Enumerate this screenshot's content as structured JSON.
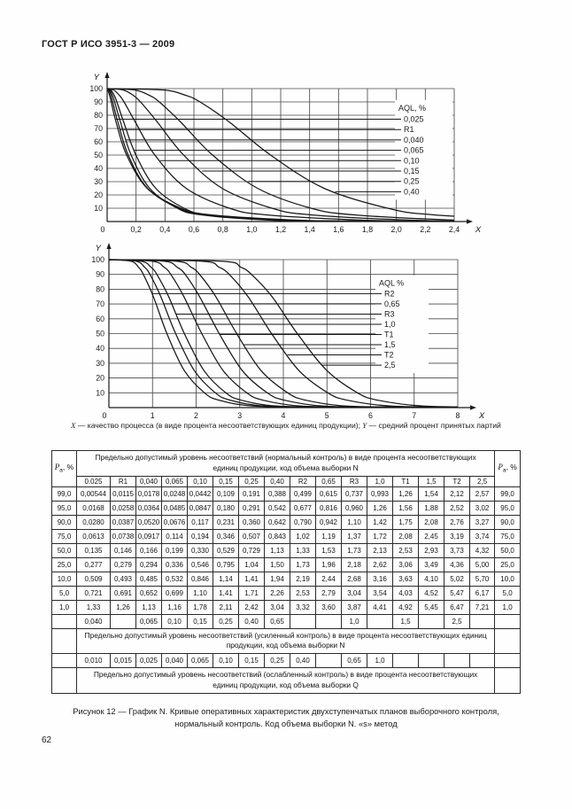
{
  "document": {
    "header": "ГОСТ Р ИСО 3951-3 — 2009",
    "page_number": "62",
    "axis_note": {
      "x_symbol": "X",
      "x_text": " — качество процесса (в виде процента несоответствующих единиц продукции); ",
      "y_symbol": "Y",
      "y_text": " — средний процент принятых партий"
    },
    "figure_caption": {
      "line1": "Рисунок 12 — График N. Кривые оперативных характеристик двухступенчатых планов выборочного контроля,",
      "line2": "нормальный контроль. Код объема выборки N. «s» метод"
    }
  },
  "chart_data": [
    {
      "type": "line",
      "title": "",
      "xlabel": "X",
      "ylabel": "Y",
      "xlim": [
        0,
        2.4
      ],
      "ylim": [
        0,
        100
      ],
      "grid": true,
      "origin_label": "0",
      "x_tick_values": [
        0.2,
        0.4,
        0.6,
        0.8,
        1.0,
        1.2,
        1.4,
        1.6,
        1.8,
        2.0,
        2.2,
        2.4
      ],
      "x_tick_labels": [
        "0,2",
        "0,4",
        "0,6",
        "0,8",
        "1,0",
        "1,2",
        "1,4",
        "1,6",
        "1,8",
        "2,0",
        "2,2",
        "2,4"
      ],
      "y_tick_values": [
        10,
        20,
        30,
        40,
        50,
        60,
        70,
        80,
        90,
        100
      ],
      "legend_title": "AQL, %",
      "legend_position": "inside-right",
      "pa_percent_levels": [
        99,
        95,
        90,
        75,
        50,
        25,
        10,
        5,
        1
      ],
      "series": [
        {
          "name": "0,025",
          "x": [
            0.00544,
            0.0168,
            0.028,
            0.0613,
            0.135,
            0.277,
            0.509,
            0.721,
            1.33
          ]
        },
        {
          "name": "R1",
          "x": [
            0.0115,
            0.0258,
            0.0387,
            0.0738,
            0.146,
            0.279,
            0.493,
            0.691,
            1.26
          ]
        },
        {
          "name": "0,040",
          "x": [
            0.0178,
            0.0364,
            0.052,
            0.0917,
            0.166,
            0.294,
            0.485,
            0.652,
            1.13
          ]
        },
        {
          "name": "0,065",
          "x": [
            0.0248,
            0.0485,
            0.0676,
            0.114,
            0.199,
            0.336,
            0.532,
            0.699,
            1.16
          ]
        },
        {
          "name": "0,10",
          "x": [
            0.0442,
            0.0847,
            0.117,
            0.194,
            0.33,
            0.546,
            0.846,
            1.1,
            1.78
          ]
        },
        {
          "name": "0,15",
          "x": [
            0.109,
            0.18,
            0.231,
            0.346,
            0.529,
            0.795,
            1.14,
            1.41,
            2.11
          ]
        },
        {
          "name": "0,25",
          "x": [
            0.191,
            0.291,
            0.36,
            0.507,
            0.729,
            1.04,
            1.41,
            1.71,
            2.42
          ]
        },
        {
          "name": "0,40",
          "x": [
            0.388,
            0.542,
            0.642,
            0.843,
            1.13,
            1.5,
            1.94,
            2.26,
            3.04
          ]
        }
      ]
    },
    {
      "type": "line",
      "title": "",
      "xlabel": "X",
      "ylabel": "Y",
      "xlim": [
        0,
        8
      ],
      "ylim": [
        0,
        100
      ],
      "grid": true,
      "origin_label": "0",
      "x_tick_values": [
        1,
        2,
        3,
        4,
        5,
        6,
        7,
        8
      ],
      "x_tick_labels": [
        "1",
        "2",
        "3",
        "4",
        "5",
        "6",
        "7",
        "8"
      ],
      "y_tick_values": [
        10,
        20,
        30,
        40,
        50,
        60,
        70,
        80,
        90,
        100
      ],
      "legend_title": "AQL %",
      "legend_position": "inside-right",
      "pa_percent_levels": [
        99,
        95,
        90,
        75,
        50,
        25,
        10,
        5,
        1
      ],
      "series": [
        {
          "name": "R2",
          "x": [
            0.499,
            0.677,
            0.79,
            1.02,
            1.33,
            1.73,
            2.19,
            2.53,
            3.32
          ]
        },
        {
          "name": "0,65",
          "x": [
            0.615,
            0.816,
            0.942,
            1.19,
            1.53,
            1.96,
            2.44,
            2.79,
            3.6
          ]
        },
        {
          "name": "R3",
          "x": [
            0.737,
            0.96,
            1.1,
            1.37,
            1.73,
            2.18,
            2.68,
            3.04,
            3.87
          ]
        },
        {
          "name": "1,0",
          "x": [
            0.993,
            1.26,
            1.42,
            1.72,
            2.13,
            2.62,
            3.16,
            3.54,
            4.41
          ]
        },
        {
          "name": "T1",
          "x": [
            1.26,
            1.56,
            1.75,
            2.08,
            2.53,
            3.06,
            3.63,
            4.03,
            4.92
          ]
        },
        {
          "name": "1,5",
          "x": [
            1.54,
            1.88,
            2.08,
            2.45,
            2.93,
            3.49,
            4.1,
            4.52,
            5.45
          ]
        },
        {
          "name": "T2",
          "x": [
            2.12,
            2.52,
            2.76,
            3.19,
            3.73,
            4.36,
            5.02,
            5.47,
            6.47
          ]
        },
        {
          "name": "2,5",
          "x": [
            2.57,
            3.02,
            3.27,
            3.74,
            4.32,
            5.0,
            5.7,
            6.17,
            7.21
          ]
        }
      ]
    }
  ],
  "table": {
    "pa_label": {
      "main": "P",
      "sub": "а",
      "suffix": ", %"
    },
    "span_header_normal": "Предельно допустимый уровень несоответствий (нормальный контроль) в виде процента несоответствующих единиц продукции, код объема выборки N",
    "col_headers": [
      "0.025",
      "R1",
      "0,040",
      "0,065",
      "0,10",
      "0,15",
      "0,25",
      "0,40",
      "R2",
      "0,65",
      "R3",
      "1,0",
      "T1",
      "1,5",
      "T2",
      "2,5"
    ],
    "pa_levels": [
      "99,0",
      "95,0",
      "90,0",
      "75,0",
      "50,0",
      "25,0",
      "10,0",
      "5,0",
      "1,0"
    ],
    "rows": [
      [
        "0,00544",
        "0,0115",
        "0,0178",
        "0,0248",
        "0,0442",
        "0,109",
        "0,191",
        "0,388",
        "0,499",
        "0,615",
        "0,737",
        "0,993",
        "1,26",
        "1,54",
        "2,12",
        "2,57"
      ],
      [
        "0,0168",
        "0,0258",
        "0,0364",
        "0,0485",
        "0,0847",
        "0,180",
        "0,291",
        "0,542",
        "0,677",
        "0,816",
        "0,960",
        "1,26",
        "1,56",
        "1,88",
        "2,52",
        "3,02"
      ],
      [
        "0,0280",
        "0,0387",
        "0,0520",
        "0,0676",
        "0,117",
        "0,231",
        "0,360",
        "0,642",
        "0,790",
        "0,942",
        "1,10",
        "1,42",
        "1,75",
        "2,08",
        "2,76",
        "3,27"
      ],
      [
        "0,0613",
        "0,0738",
        "0,0917",
        "0,114",
        "0,194",
        "0,346",
        "0,507",
        "0,843",
        "1,02",
        "1,19",
        "1,37",
        "1,72",
        "2,08",
        "2,45",
        "3,19",
        "3,74"
      ],
      [
        "0,135",
        "0,146",
        "0,166",
        "0,199",
        "0,330",
        "0,529",
        "0,729",
        "1,13",
        "1,33",
        "1,53",
        "1,73",
        "2,13",
        "2,53",
        "2,93",
        "3,73",
        "4,32"
      ],
      [
        "0,277",
        "0,279",
        "0,294",
        "0,336",
        "0,546",
        "0,795",
        "1,04",
        "1,50",
        "1,73",
        "1,96",
        "2,18",
        "2,62",
        "3,06",
        "3,49",
        "4,36",
        "5,00"
      ],
      [
        "0,509",
        "0,493",
        "0,485",
        "0,532",
        "0,846",
        "1,14",
        "1,41",
        "1,94",
        "2,19",
        "2,44",
        "2,68",
        "3,16",
        "3,63",
        "4,10",
        "5,02",
        "5,70"
      ],
      [
        "0,721",
        "0,691",
        "0,652",
        "0,699",
        "1,10",
        "1,41",
        "1,71",
        "2,26",
        "2,53",
        "2,79",
        "3,04",
        "3,54",
        "4,03",
        "4,52",
        "5,47",
        "6,17"
      ],
      [
        "1,33",
        "1,26",
        "1,13",
        "1,16",
        "1,78",
        "2,11",
        "2,42",
        "3,04",
        "3,32",
        "3,60",
        "3,87",
        "4,41",
        "4,92",
        "5,45",
        "6,47",
        "7,21"
      ]
    ],
    "tightened_aql_row": [
      "0,040",
      "",
      "0,065",
      "0,10",
      "0,15",
      "0,25",
      "0,40",
      "0,65",
      "",
      "",
      "1,0",
      "",
      "1,5",
      "",
      "2,5",
      ""
    ],
    "span_header_tightened": "Предельно допустимый уровень несоответствий (усиленный контроль) в виде процента несоответствующих единиц продукции, код объема выборки N",
    "reduced_aql_row": [
      "0,010",
      "0,015",
      "0,025",
      "0,040",
      "0,065",
      "0,10",
      "0,15",
      "0,25",
      "0,40",
      "",
      "0,65",
      "1,0",
      "",
      "",
      "",
      ""
    ],
    "span_header_reduced": "Предельно допустимый уровень несоответствий (ослабленный контроль) в виде процента несоответствующих единиц продукции, код объема выборки Q"
  },
  "colors": {
    "ink": "#1a1a1a",
    "grid": "#4a4a4a",
    "curve": "#161616",
    "paper": "#fefefe"
  }
}
